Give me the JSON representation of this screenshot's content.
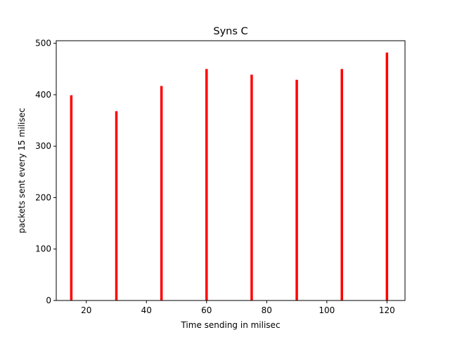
{
  "chart_data": {
    "type": "bar",
    "title": "Syns C",
    "xlabel": "Time sending in milisec",
    "ylabel": "packets sent every 15 milisec",
    "x": [
      15,
      30,
      45,
      60,
      75,
      90,
      105,
      120
    ],
    "values": [
      399,
      368,
      417,
      450,
      439,
      429,
      450,
      482
    ],
    "bar_color": "#ff0000",
    "xlim": [
      10,
      126
    ],
    "ylim": [
      0,
      505
    ],
    "xticks": [
      20,
      40,
      60,
      80,
      100,
      120
    ],
    "yticks": [
      0,
      100,
      200,
      300,
      400,
      500
    ],
    "grid": false
  }
}
